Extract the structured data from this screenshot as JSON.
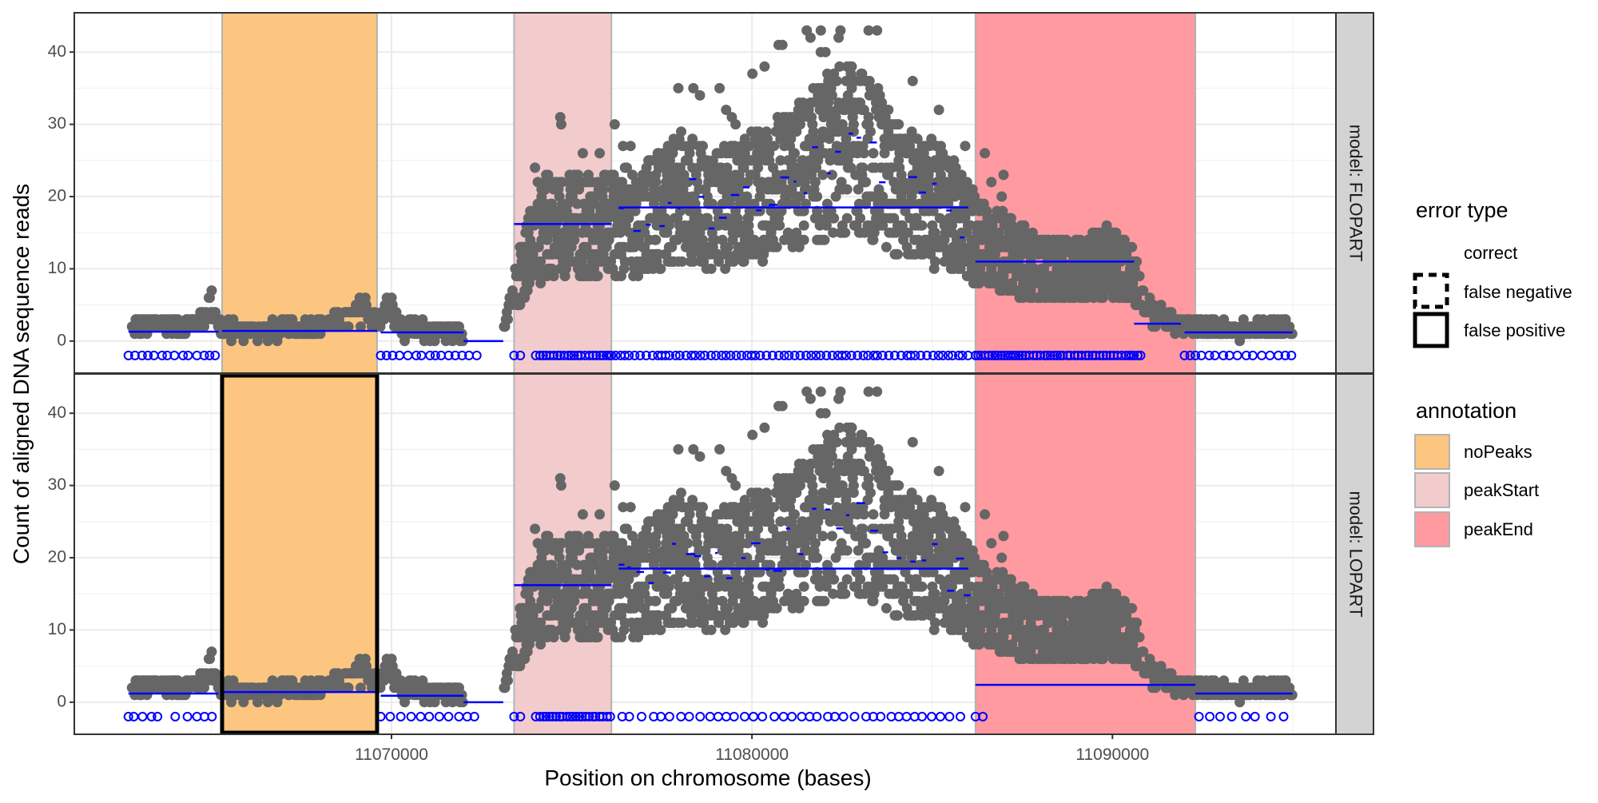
{
  "chart_data": {
    "type": "scatter",
    "xlabel": "Position on chromosome (bases)",
    "ylabel": "Count of aligned DNA sequence reads",
    "xlim": [
      11061200,
      11096200
    ],
    "ylim": [
      -4,
      45
    ],
    "x_ticks": [
      11070000,
      11080000,
      11090000
    ],
    "x_tick_labels": [
      "11070000",
      "11080000",
      "11090000"
    ],
    "y_ticks": [
      0,
      10,
      20,
      30,
      40
    ],
    "y_tick_labels": [
      "0",
      "10",
      "20",
      "30",
      "40"
    ],
    "grid": true,
    "legend_position": "right",
    "colors": {
      "points": "#666666",
      "segments": "#0000ff",
      "noPeaks": "#fdc680",
      "peakStart": "#f2cbcd",
      "peakEnd": "#fe9aa0",
      "panel_bg": "#ffffff",
      "grid": "#ebebeb",
      "strip_bg": "#d3d3d3"
    },
    "annotations": [
      {
        "label": "noPeaks",
        "start": 11065300,
        "end": 11069600
      },
      {
        "label": "peakStart",
        "start": 11073400,
        "end": 11076100
      },
      {
        "label": "peakEnd",
        "start": 11086200,
        "end": 11092300
      }
    ],
    "panels": [
      {
        "strip": "model: FLOPART",
        "error_boxes": [],
        "segments": [
          [
            11062700,
            11065200,
            1.3
          ],
          [
            11065300,
            11069600,
            1.4
          ],
          [
            11069700,
            11072000,
            1.2
          ],
          [
            11072000,
            11073100,
            0.0
          ],
          [
            11073400,
            11076100,
            16.2
          ],
          [
            11076300,
            11086000,
            18.5
          ],
          [
            11086200,
            11090600,
            11.0
          ],
          [
            11090600,
            11091900,
            2.4
          ],
          [
            11092000,
            11095000,
            1.2
          ]
        ],
        "peak_markers": [
          [
            11062700,
            11065200,
            3
          ],
          [
            11069700,
            11072500,
            3
          ],
          [
            11073400,
            11073700,
            2
          ],
          [
            11074000,
            11076100,
            1
          ],
          [
            11076100,
            11086000,
            2
          ],
          [
            11086200,
            11090800,
            1
          ],
          [
            11092000,
            11095000,
            3
          ]
        ]
      },
      {
        "strip": "model: LOPART",
        "error_boxes": [
          {
            "start": 11065300,
            "end": 11069600,
            "error": "false positive"
          }
        ],
        "segments": [
          [
            11062700,
            11065200,
            1.2
          ],
          [
            11065300,
            11069600,
            1.4
          ],
          [
            11069700,
            11072000,
            0.9
          ],
          [
            11072000,
            11073100,
            0.0
          ],
          [
            11073400,
            11076100,
            16.2
          ],
          [
            11076300,
            11086000,
            18.5
          ],
          [
            11086200,
            11092300,
            2.4
          ],
          [
            11092300,
            11095000,
            1.2
          ]
        ],
        "peak_markers": [
          [
            11062700,
            11063700,
            3
          ],
          [
            11064000,
            11065200,
            4
          ],
          [
            11069700,
            11072500,
            4
          ],
          [
            11073400,
            11073700,
            2
          ],
          [
            11074000,
            11076100,
            1
          ],
          [
            11076400,
            11086000,
            4
          ],
          [
            11086200,
            11086600,
            3
          ],
          [
            11092400,
            11095000,
            5
          ]
        ]
      }
    ],
    "coverage_profile": [
      [
        11062800,
        2
      ],
      [
        11063500,
        2.5
      ],
      [
        11064200,
        2
      ],
      [
        11064700,
        3
      ],
      [
        11065000,
        5
      ],
      [
        11065300,
        1.5
      ],
      [
        11066500,
        1.5
      ],
      [
        11067800,
        1.8
      ],
      [
        11068800,
        3
      ],
      [
        11069300,
        5
      ],
      [
        11069600,
        2
      ],
      [
        11069900,
        5
      ],
      [
        11070300,
        1.5
      ],
      [
        11071500,
        1.2
      ],
      [
        11072000,
        1
      ],
      [
        11072100,
        0
      ],
      [
        11073000,
        0
      ],
      [
        11073300,
        6
      ],
      [
        11073700,
        11
      ],
      [
        11074300,
        16
      ],
      [
        11075300,
        16
      ],
      [
        11076100,
        16
      ],
      [
        11077000,
        17
      ],
      [
        11078000,
        20
      ],
      [
        11079000,
        18
      ],
      [
        11080000,
        20
      ],
      [
        11081000,
        22
      ],
      [
        11082000,
        25
      ],
      [
        11082500,
        27
      ],
      [
        11083200,
        26
      ],
      [
        11084000,
        21
      ],
      [
        11085000,
        19
      ],
      [
        11085800,
        17
      ],
      [
        11086200,
        14
      ],
      [
        11087000,
        12
      ],
      [
        11088000,
        10
      ],
      [
        11089000,
        10
      ],
      [
        11090000,
        11
      ],
      [
        11090600,
        9
      ],
      [
        11091000,
        4
      ],
      [
        11092000,
        2
      ],
      [
        11093500,
        1.5
      ],
      [
        11095000,
        2
      ]
    ]
  },
  "legend": {
    "error_type_title": "error type",
    "error_types": [
      "correct",
      "false negative",
      "false positive"
    ],
    "annotation_title": "annotation",
    "annotations": [
      "noPeaks",
      "peakStart",
      "peakEnd"
    ]
  }
}
